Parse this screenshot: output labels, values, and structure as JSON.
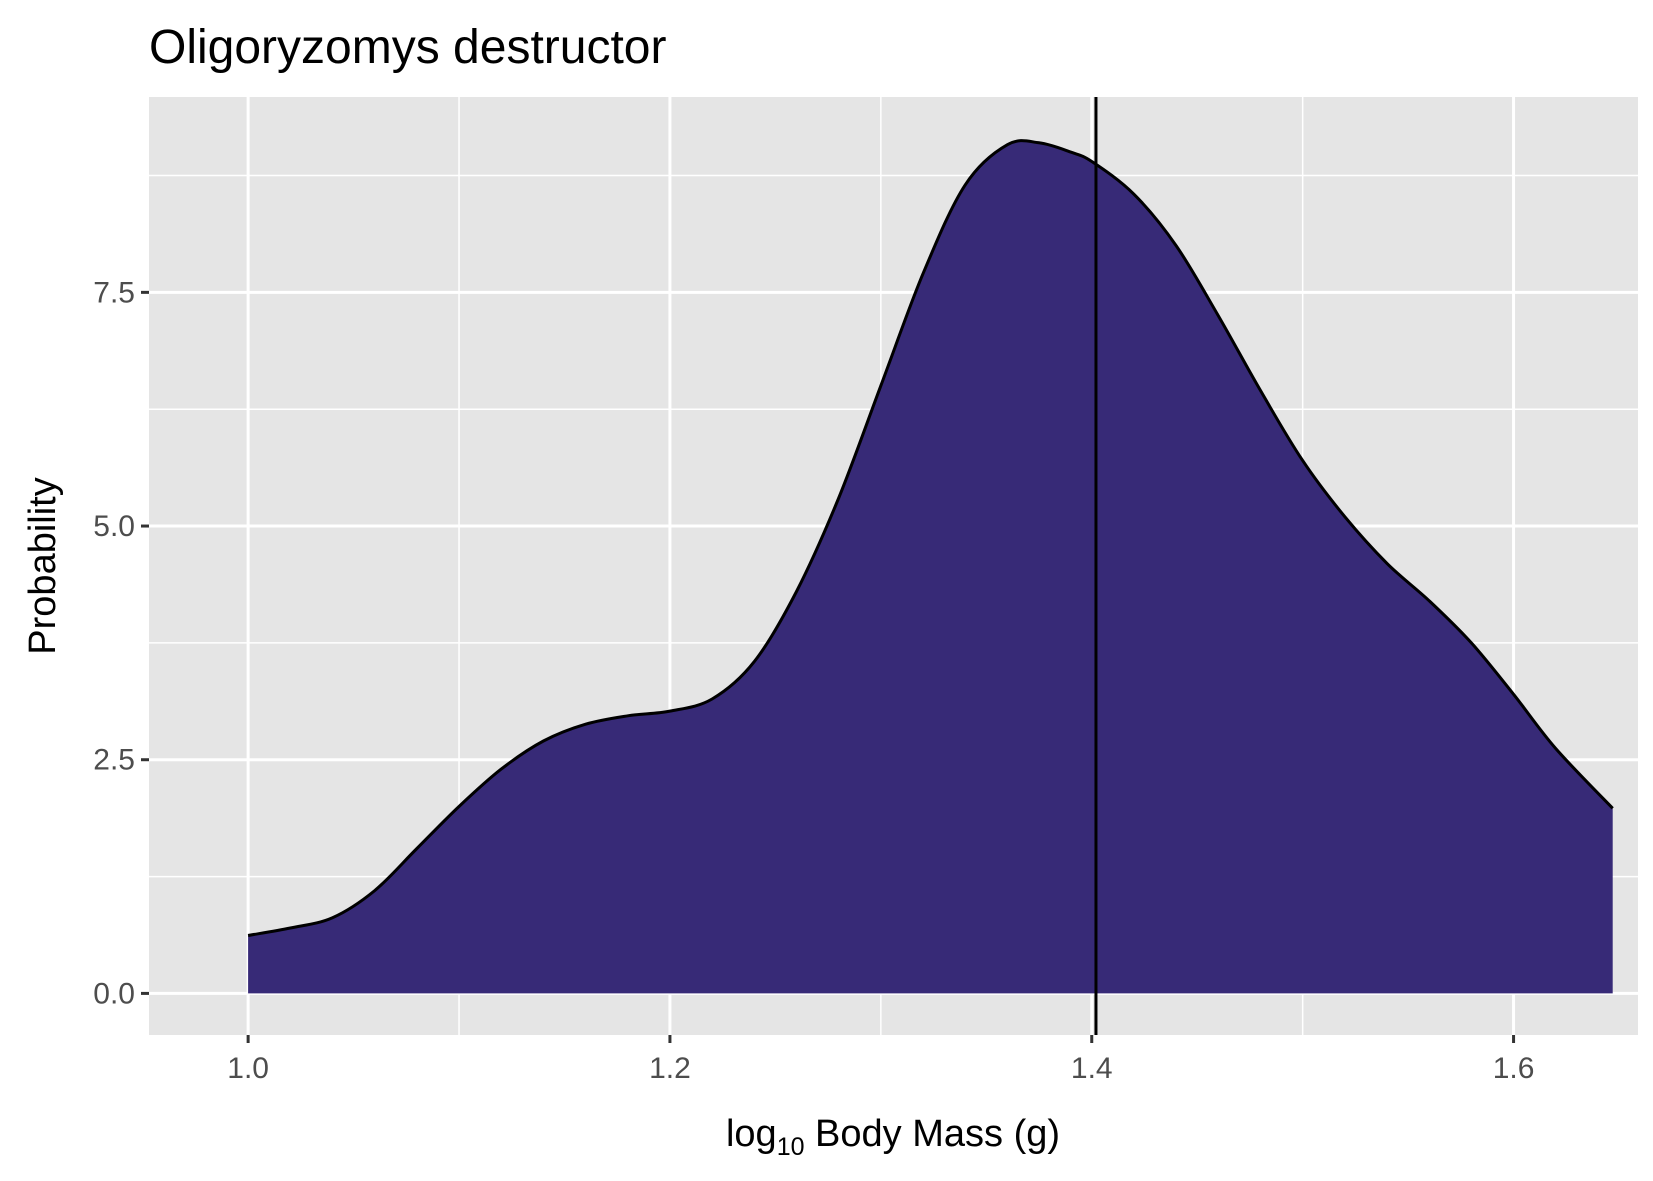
{
  "chart_data": {
    "type": "area",
    "title": "Oligoryzomys destructor",
    "xlabel": {
      "prefix": "log",
      "subscript": "10",
      "suffix": " Body Mass (g)"
    },
    "ylabel": "Probability",
    "xlim": [
      0.953,
      1.659
    ],
    "ylim": [
      -0.445,
      9.59
    ],
    "x_ticks": [
      1.0,
      1.2,
      1.4,
      1.6
    ],
    "x_tick_labels": [
      "1.0",
      "1.2",
      "1.4",
      "1.6"
    ],
    "y_ticks": [
      0.0,
      2.5,
      5.0,
      7.5
    ],
    "y_tick_labels": [
      "0.0",
      "2.5",
      "5.0",
      "7.5"
    ],
    "x_minor_gridlines": [
      1.1,
      1.3,
      1.5
    ],
    "y_minor_gridlines": [
      1.25,
      3.75,
      6.25,
      8.75
    ],
    "grid": true,
    "fill_color": "#372a77",
    "outline_color": "#000000",
    "panel_color": "#e5e5e5",
    "vline_x": 1.402,
    "series": [
      {
        "x": [
          1.0,
          1.02,
          1.04,
          1.06,
          1.08,
          1.1,
          1.12,
          1.14,
          1.16,
          1.18,
          1.2,
          1.22,
          1.24,
          1.26,
          1.28,
          1.3,
          1.32,
          1.34,
          1.36,
          1.375,
          1.39,
          1.4,
          1.42,
          1.44,
          1.46,
          1.48,
          1.5,
          1.52,
          1.54,
          1.56,
          1.58,
          1.6,
          1.62,
          1.647
        ],
        "values": [
          0.62,
          0.7,
          0.81,
          1.1,
          1.55,
          2.0,
          2.4,
          2.7,
          2.88,
          2.97,
          3.02,
          3.15,
          3.55,
          4.3,
          5.3,
          6.5,
          7.7,
          8.65,
          9.08,
          9.1,
          9.0,
          8.9,
          8.55,
          8.0,
          7.25,
          6.45,
          5.7,
          5.1,
          4.6,
          4.2,
          3.75,
          3.2,
          2.62,
          1.98
        ]
      }
    ]
  }
}
